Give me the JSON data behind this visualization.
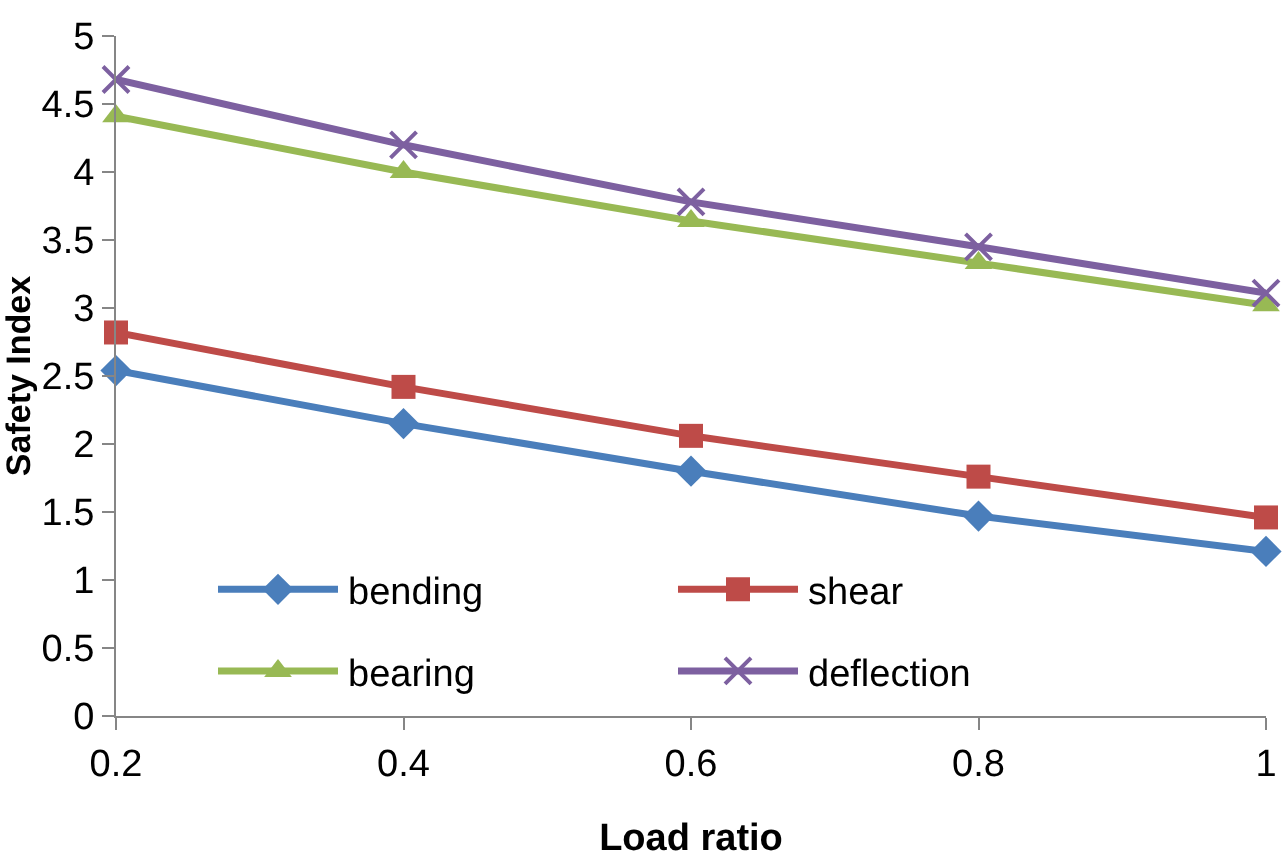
{
  "chart_data": {
    "type": "line",
    "xlabel": "Load ratio",
    "ylabel": "Safety Index",
    "x": [
      0.2,
      0.4,
      0.6,
      0.8,
      1
    ],
    "xlim": [
      0.2,
      1
    ],
    "xticks": [
      0.2,
      0.4,
      0.6,
      0.8,
      1
    ],
    "ylim": [
      0,
      5
    ],
    "yticks": [
      0,
      0.5,
      1,
      1.5,
      2,
      2.5,
      3,
      3.5,
      4,
      4.5,
      5
    ],
    "grid": false,
    "legend": "bottom",
    "line_style": "solid",
    "series": [
      {
        "name": "bending",
        "color": "#4a7ebb",
        "marker": "diamond",
        "values": [
          2.54,
          2.15,
          1.8,
          1.47,
          1.21
        ]
      },
      {
        "name": "shear",
        "color": "#be4b48",
        "marker": "square",
        "values": [
          2.82,
          2.42,
          2.06,
          1.76,
          1.46
        ]
      },
      {
        "name": "bearing",
        "color": "#98b954",
        "marker": "triangle",
        "values": [
          4.41,
          4.0,
          3.64,
          3.33,
          3.02
        ]
      },
      {
        "name": "deflection",
        "color": "#7d60a0",
        "marker": "cross",
        "values": [
          4.68,
          4.2,
          3.78,
          3.45,
          3.11
        ]
      }
    ]
  }
}
